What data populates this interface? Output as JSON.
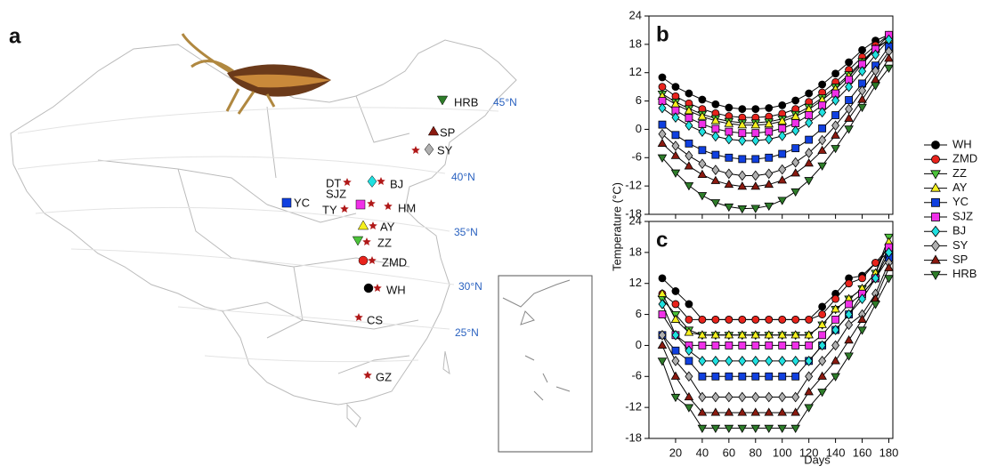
{
  "map": {
    "panel_label": "a",
    "sites": [
      "HRB",
      "SP",
      "SY",
      "DT",
      "BJ",
      "SJZ",
      "YC",
      "TY",
      "HM",
      "AY",
      "ZZ",
      "ZMD",
      "WH",
      "CS",
      "GZ"
    ],
    "latitudes": [
      "45°N",
      "40°N",
      "35°N",
      "30°N",
      "25°N"
    ]
  },
  "chart_data": {
    "type": "line",
    "panel_labels": [
      "b",
      "c"
    ],
    "x_label": "Days",
    "y_label": "Temperature (°C)",
    "x": [
      10,
      20,
      30,
      40,
      50,
      60,
      70,
      80,
      90,
      100,
      110,
      120,
      130,
      140,
      150,
      160,
      170,
      180
    ],
    "xlim": [
      0,
      183
    ],
    "xticks": [
      20,
      40,
      60,
      80,
      100,
      120,
      140,
      160,
      180
    ],
    "ylim": [
      -18,
      24
    ],
    "yticks": [
      -18,
      -12,
      -6,
      0,
      6,
      12,
      18,
      24
    ],
    "series": [
      {
        "name": "WH",
        "color": "#000000",
        "marker": "circle",
        "values": [
          [
            11,
            9,
            7.6,
            6.3,
            5.3,
            4.6,
            4.3,
            4.3,
            4.5,
            5.1,
            6.1,
            7.6,
            9.5,
            11.8,
            14.2,
            16.8,
            18.8,
            20
          ],
          [
            13,
            10.5,
            8,
            5,
            5,
            5,
            5,
            5,
            5,
            5,
            5,
            5,
            7.5,
            10,
            13,
            13.5,
            16,
            18
          ]
        ]
      },
      {
        "name": "ZMD",
        "color": "#e8231c",
        "marker": "circle",
        "values": [
          [
            9,
            7,
            5.5,
            4.3,
            3.4,
            2.8,
            2.5,
            2.5,
            2.7,
            3.3,
            4.3,
            5.8,
            7.8,
            10,
            12.6,
            15.3,
            17.8,
            20
          ],
          [
            10,
            8,
            5,
            5,
            5,
            5,
            5,
            5,
            5,
            5,
            5,
            5,
            6,
            9,
            12,
            13,
            16,
            19
          ]
        ]
      },
      {
        "name": "ZZ",
        "color": "#4cc33a",
        "marker": "tri-down",
        "values": [
          [
            7.5,
            5.8,
            4.4,
            3.2,
            2.3,
            1.7,
            1.4,
            1.4,
            1.6,
            2.2,
            3.2,
            4.7,
            6.7,
            9,
            11.6,
            14.4,
            17.2,
            19
          ],
          [
            9,
            6,
            3,
            2,
            2,
            2,
            2,
            2,
            2,
            2,
            2,
            2,
            4,
            7,
            9,
            11,
            14,
            21
          ]
        ]
      },
      {
        "name": "AY",
        "color": "#f5f01e",
        "marker": "tri-up",
        "values": [
          [
            7,
            5.3,
            3.9,
            2.7,
            1.8,
            1.2,
            0.9,
            0.9,
            1.1,
            1.7,
            2.7,
            4.2,
            6.2,
            8.5,
            11.2,
            14.1,
            17,
            19
          ],
          [
            10,
            5,
            2.5,
            2,
            2,
            2,
            2,
            2,
            2,
            2,
            2,
            2,
            4,
            7,
            9,
            11,
            14,
            20
          ]
        ]
      },
      {
        "name": "YC",
        "color": "#1040e0",
        "marker": "square",
        "values": [
          [
            1,
            -1.2,
            -3,
            -4.4,
            -5.4,
            -6,
            -6.3,
            -6.3,
            -6,
            -5.2,
            -4,
            -2.2,
            0.2,
            3,
            6.2,
            9.7,
            13.5,
            17.5
          ],
          [
            2,
            -1,
            -3,
            -6,
            -6,
            -6,
            -6,
            -6,
            -6,
            -6,
            -6,
            -3,
            0,
            3,
            6,
            10,
            13,
            17
          ]
        ]
      },
      {
        "name": "SJZ",
        "color": "#f030e8",
        "marker": "square",
        "values": [
          [
            6,
            4,
            2.4,
            1.1,
            0.1,
            -0.5,
            -0.8,
            -0.8,
            -0.5,
            0.2,
            1.3,
            3,
            5.1,
            7.6,
            10.5,
            13.8,
            17,
            20
          ],
          [
            6,
            2,
            0,
            0,
            0,
            0,
            0,
            0,
            0,
            0,
            0,
            0,
            2,
            5,
            8,
            10,
            13,
            19
          ]
        ]
      },
      {
        "name": "BJ",
        "color": "#20e0e0",
        "marker": "diamond",
        "values": [
          [
            4.5,
            2.5,
            0.8,
            -0.5,
            -1.5,
            -2.1,
            -2.4,
            -2.4,
            -2.1,
            -1.4,
            -0.3,
            1.4,
            3.6,
            6.1,
            9,
            12.3,
            15.8,
            19
          ],
          [
            8,
            2,
            -1,
            -3,
            -3,
            -3,
            -3,
            -3,
            -3,
            -3,
            -3,
            -3,
            0,
            3,
            6,
            9,
            13,
            18
          ]
        ]
      },
      {
        "name": "SY",
        "color": "#b0b0b0",
        "marker": "diamond",
        "values": [
          [
            -1,
            -3.5,
            -5.6,
            -7.3,
            -8.6,
            -9.4,
            -9.8,
            -9.8,
            -9.4,
            -8.5,
            -7,
            -5,
            -2.3,
            0.8,
            4.3,
            8.2,
            12.4,
            16.5
          ],
          [
            2,
            -3,
            -6,
            -10,
            -10,
            -10,
            -10,
            -10,
            -10,
            -10,
            -10,
            -6,
            -3,
            0,
            4,
            6,
            10,
            16
          ]
        ]
      },
      {
        "name": "SP",
        "color": "#8b1a10",
        "marker": "tri-up",
        "values": [
          [
            -3,
            -5.6,
            -7.8,
            -9.6,
            -10.9,
            -11.7,
            -12.1,
            -12.1,
            -11.7,
            -10.8,
            -9.3,
            -7.2,
            -4.5,
            -1.3,
            2.3,
            6.3,
            10.5,
            15
          ],
          [
            0,
            -6,
            -10,
            -13,
            -13,
            -13,
            -13,
            -13,
            -13,
            -13,
            -13,
            -9,
            -6,
            -3,
            1,
            5,
            9,
            15
          ]
        ]
      },
      {
        "name": "HRB",
        "color": "#2e7d2a",
        "marker": "tri-down",
        "values": [
          [
            -6,
            -9.2,
            -11.9,
            -14,
            -15.5,
            -16.4,
            -16.8,
            -16.7,
            -16.2,
            -15,
            -13.2,
            -10.8,
            -7.7,
            -4,
            0.1,
            4.7,
            9.3,
            13
          ],
          [
            -3,
            -10,
            -12,
            -16,
            -16,
            -16,
            -16,
            -16,
            -16,
            -16,
            -16,
            -12,
            -9,
            -6,
            -2,
            3,
            8,
            13
          ]
        ]
      }
    ]
  }
}
